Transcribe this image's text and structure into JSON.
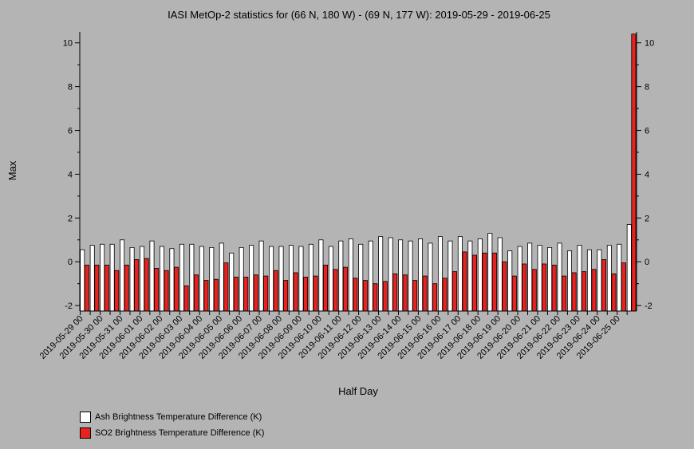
{
  "chart_data": {
    "type": "bar",
    "title": "IASI MetOp-2 statistics for (66 N, 180 W) - (69 N, 177 W): 2019-05-29 - 2019-06-25",
    "xlabel": "Half Day",
    "ylabel": "Max",
    "ylim": [
      -2.25,
      10.5
    ],
    "yticks": [
      -2,
      0,
      2,
      4,
      6,
      8,
      10
    ],
    "grid": false,
    "legend_position": "bottom-left",
    "tick_labels": [
      "2019-05-29 00",
      "2019-05-30 00",
      "2019-05-31 00",
      "2019-06-01 00",
      "2019-06-02 00",
      "2019-06-03 00",
      "2019-06-04 00",
      "2019-06-05 00",
      "2019-06-06 00",
      "2019-06-07 00",
      "2019-06-08 00",
      "2019-06-09 00",
      "2019-06-10 00",
      "2019-06-11 00",
      "2019-06-12 00",
      "2019-06-13 00",
      "2019-06-14 00",
      "2019-06-15 00",
      "2019-06-16 00",
      "2019-06-17 00",
      "2019-06-18 00",
      "2019-06-19 00",
      "2019-06-20 00",
      "2019-06-21 00",
      "2019-06-22 00",
      "2019-06-23 00",
      "2019-06-24 00",
      "2019-06-25 00"
    ],
    "x": [
      "2019-05-29 00",
      "2019-05-29 12",
      "2019-05-30 00",
      "2019-05-30 12",
      "2019-05-31 00",
      "2019-05-31 12",
      "2019-06-01 00",
      "2019-06-01 12",
      "2019-06-02 00",
      "2019-06-02 12",
      "2019-06-03 00",
      "2019-06-03 12",
      "2019-06-04 00",
      "2019-06-04 12",
      "2019-06-05 00",
      "2019-06-05 12",
      "2019-06-06 00",
      "2019-06-06 12",
      "2019-06-07 00",
      "2019-06-07 12",
      "2019-06-08 00",
      "2019-06-08 12",
      "2019-06-09 00",
      "2019-06-09 12",
      "2019-06-10 00",
      "2019-06-10 12",
      "2019-06-11 00",
      "2019-06-11 12",
      "2019-06-12 00",
      "2019-06-12 12",
      "2019-06-13 00",
      "2019-06-13 12",
      "2019-06-14 00",
      "2019-06-14 12",
      "2019-06-15 00",
      "2019-06-15 12",
      "2019-06-16 00",
      "2019-06-16 12",
      "2019-06-17 00",
      "2019-06-17 12",
      "2019-06-18 00",
      "2019-06-18 12",
      "2019-06-19 00",
      "2019-06-19 12",
      "2019-06-20 00",
      "2019-06-20 12",
      "2019-06-21 00",
      "2019-06-21 12",
      "2019-06-22 00",
      "2019-06-22 12",
      "2019-06-23 00",
      "2019-06-23 12",
      "2019-06-24 00",
      "2019-06-24 12",
      "2019-06-25 00",
      "2019-06-25 12"
    ],
    "series": [
      {
        "name": "Ash Brightness Temperature Difference (K)",
        "color": "#ffffff",
        "values": [
          0.55,
          0.75,
          0.8,
          0.8,
          1.0,
          0.65,
          0.7,
          0.95,
          0.7,
          0.6,
          0.8,
          0.8,
          0.7,
          0.65,
          0.85,
          0.4,
          0.65,
          0.75,
          0.95,
          0.7,
          0.7,
          0.75,
          0.7,
          0.8,
          1.0,
          0.7,
          0.95,
          1.05,
          0.8,
          0.95,
          1.15,
          1.1,
          1.0,
          0.95,
          1.05,
          0.85,
          1.15,
          0.95,
          1.15,
          0.95,
          1.05,
          1.3,
          1.1,
          0.5,
          0.7,
          0.85,
          0.75,
          0.65,
          0.85,
          0.5,
          0.75,
          0.55,
          0.55,
          0.75,
          0.8,
          1.7
        ]
      },
      {
        "name": "SO2 Brightness Temperature Difference (K)",
        "color": "#e8221e",
        "values": [
          -0.15,
          -0.15,
          -0.15,
          -0.4,
          -0.15,
          0.1,
          0.15,
          -0.3,
          -0.4,
          -0.25,
          -1.1,
          -0.6,
          -0.85,
          -0.8,
          -0.05,
          -0.7,
          -0.7,
          -0.6,
          -0.65,
          -0.4,
          -0.85,
          -0.5,
          -0.7,
          -0.65,
          -0.15,
          -0.35,
          -0.25,
          -0.75,
          -0.85,
          -1.0,
          -0.9,
          -0.55,
          -0.6,
          -0.85,
          -0.65,
          -1.0,
          -0.75,
          -0.45,
          0.45,
          0.3,
          0.4,
          0.4,
          0.0,
          -0.65,
          -0.1,
          -0.35,
          -0.1,
          -0.15,
          -0.65,
          -0.5,
          -0.45,
          -0.35,
          0.1,
          -0.55,
          -0.05,
          10.4
        ]
      }
    ]
  }
}
